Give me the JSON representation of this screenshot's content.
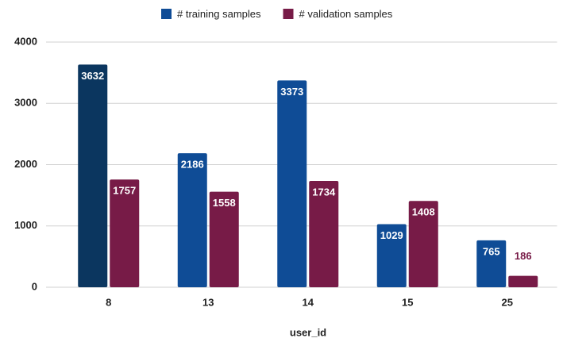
{
  "chart_data": {
    "type": "bar",
    "x_label": "user_id",
    "categories": [
      "8",
      "13",
      "14",
      "15",
      "25"
    ],
    "series": [
      {
        "name": "# training samples",
        "color": "#0f4c96",
        "colors": [
          "#0b365f",
          "#0f4c96",
          "#0f4c96",
          "#0f4c96",
          "#0f4c96"
        ],
        "values": [
          3632,
          2186,
          3373,
          1029,
          765
        ]
      },
      {
        "name": "# validation samples",
        "color": "#771b47",
        "values": [
          1757,
          1558,
          1734,
          1408,
          186
        ]
      }
    ],
    "ylim": [
      0,
      4000
    ],
    "yticks": [
      0,
      1000,
      2000,
      3000,
      4000
    ],
    "grid": true,
    "legend": "top"
  }
}
